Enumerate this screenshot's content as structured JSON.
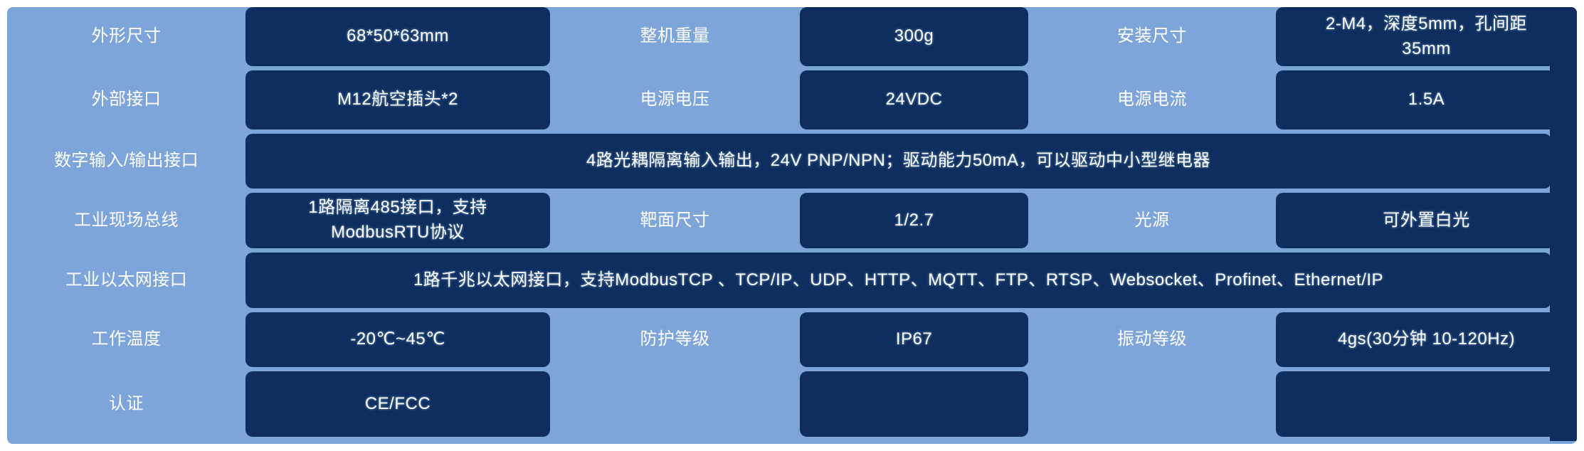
{
  "colors": {
    "panel_background": "#7EA5DA",
    "cell_background": "#0D2E5E",
    "text": "#FFFFFF"
  },
  "table": {
    "rows": [
      {
        "label1": "外形尺寸",
        "value1": "68*50*63mm",
        "label2": "整机重量",
        "value2": "300g",
        "label3": "安装尺寸",
        "value3": "2-M4，深度5mm，孔间距\n35mm"
      },
      {
        "label1": "外部接口",
        "value1": "M12航空插头*2",
        "label2": "电源电压",
        "value2": "24VDC",
        "label3": "电源电流",
        "value3": "1.5A"
      },
      {
        "label1": "数字输入/输出接口",
        "span_value": "4路光耦隔离输入输出，24V PNP/NPN；驱动能力50mA，可以驱动中小型继电器"
      },
      {
        "label1": "工业现场总线",
        "value1": "1路隔离485接口，支持\nModbusRTU协议",
        "label2": "靶面尺寸",
        "value2": "1/2.7",
        "label3": "光源",
        "value3": "可外置白光"
      },
      {
        "label1": "工业以太网接口",
        "span_value": "1路千兆以太网接口，支持ModbusTCP 、TCP/IP、UDP、HTTP、MQTT、FTP、RTSP、Websocket、Profinet、Ethernet/IP"
      },
      {
        "label1": "工作温度",
        "value1": "-20℃~45℃",
        "label2": "防护等级",
        "value2": "IP67",
        "label3": "振动等级",
        "value3": "4gs(30分钟 10-120Hz)"
      },
      {
        "label1": "认证",
        "value1": "CE/FCC",
        "label2": "",
        "value2": "",
        "label3": "",
        "value3": ""
      }
    ]
  }
}
